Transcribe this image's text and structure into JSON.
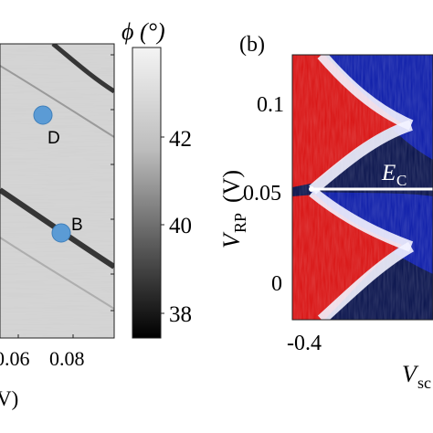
{
  "chart_data": [
    {
      "type": "heatmap",
      "panel": "",
      "xticks": [
        "0.06",
        "0.08"
      ],
      "xlabel_fragment": "V)",
      "colorbar": {
        "label": "ϕ (°)",
        "ticks": [
          "42",
          "40",
          "38"
        ],
        "range": [
          37.5,
          45
        ],
        "colormap": "grayscale"
      },
      "markers": [
        {
          "label": "D",
          "color": "#5b9bd5"
        },
        {
          "label": "B",
          "color": "#5b9bd5"
        }
      ]
    },
    {
      "type": "heatmap",
      "panel": "(b)",
      "ylabel_main": "V",
      "ylabel_sub": "RP",
      "ylabel_unit": "(V)",
      "yticks": [
        "0.1",
        "0.05",
        "0"
      ],
      "xticks": [
        "-0.4"
      ],
      "xlabel_fragment": "V",
      "xlabel_sub_fragment": "sc",
      "annotation": {
        "main": "E",
        "sub": "C"
      },
      "colormap": "blue-white-red"
    }
  ],
  "colors": {
    "marker": "#5b9bd5",
    "heat_red": "#d81010",
    "heat_blue": "#0a1aa8",
    "heat_dark": "#050a40"
  }
}
